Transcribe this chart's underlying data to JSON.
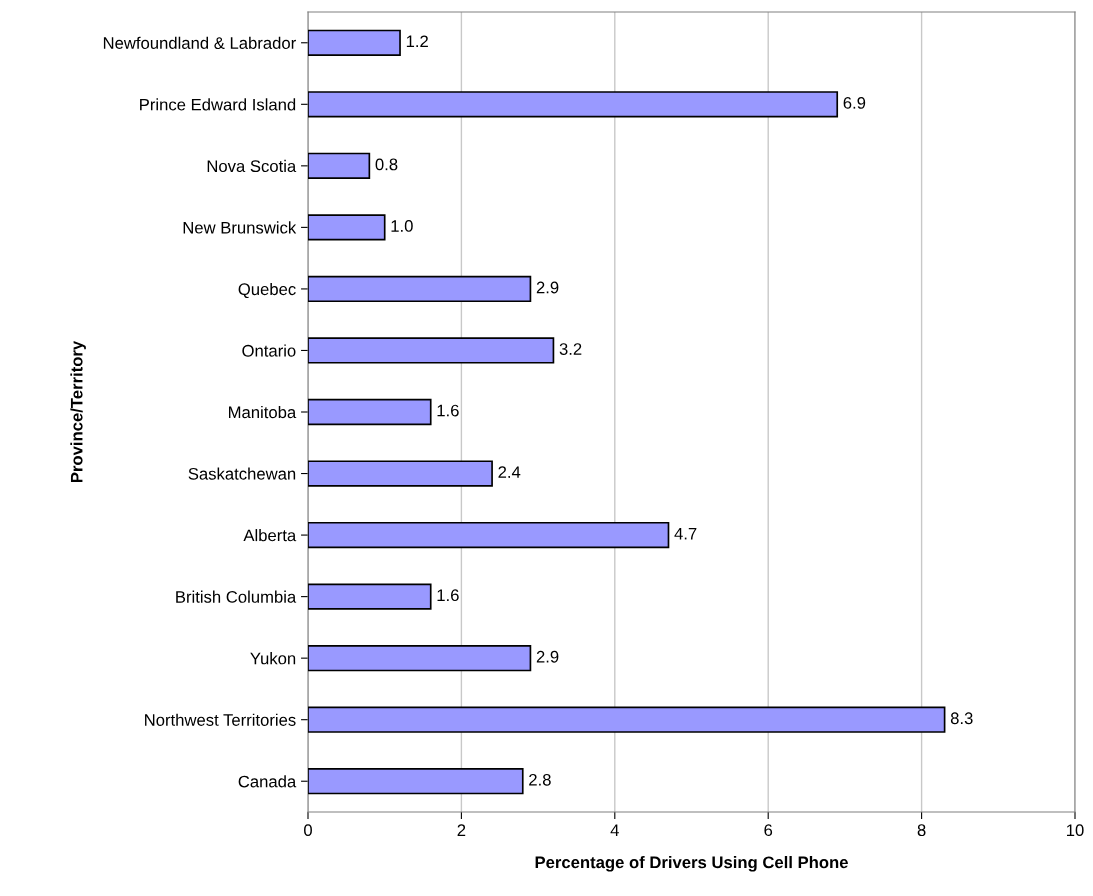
{
  "chart_data": {
    "type": "bar",
    "orientation": "horizontal",
    "xlabel": "Percentage of Drivers Using Cell Phone",
    "ylabel": "Province/Territory",
    "categories": [
      "Newfoundland & Labrador",
      "Prince Edward Island",
      "Nova Scotia",
      "New Brunswick",
      "Quebec",
      "Ontario",
      "Manitoba",
      "Saskatchewan",
      "Alberta",
      "British Columbia",
      "Yukon",
      "Northwest Territories",
      "Canada"
    ],
    "values": [
      1.2,
      6.9,
      0.8,
      1.0,
      2.9,
      3.2,
      1.6,
      2.4,
      4.7,
      1.6,
      2.9,
      8.3,
      2.8
    ],
    "value_labels": [
      "1.2",
      "6.9",
      "0.8",
      "1.0",
      "2.9",
      "3.2",
      "1.6",
      "2.4",
      "4.7",
      "1.6",
      "2.9",
      "8.3",
      "2.8"
    ],
    "color": "#9999ff",
    "xlim": [
      0,
      10
    ],
    "xticks": [
      0,
      2,
      4,
      6,
      8,
      10
    ],
    "grid": "x",
    "legend": false
  }
}
